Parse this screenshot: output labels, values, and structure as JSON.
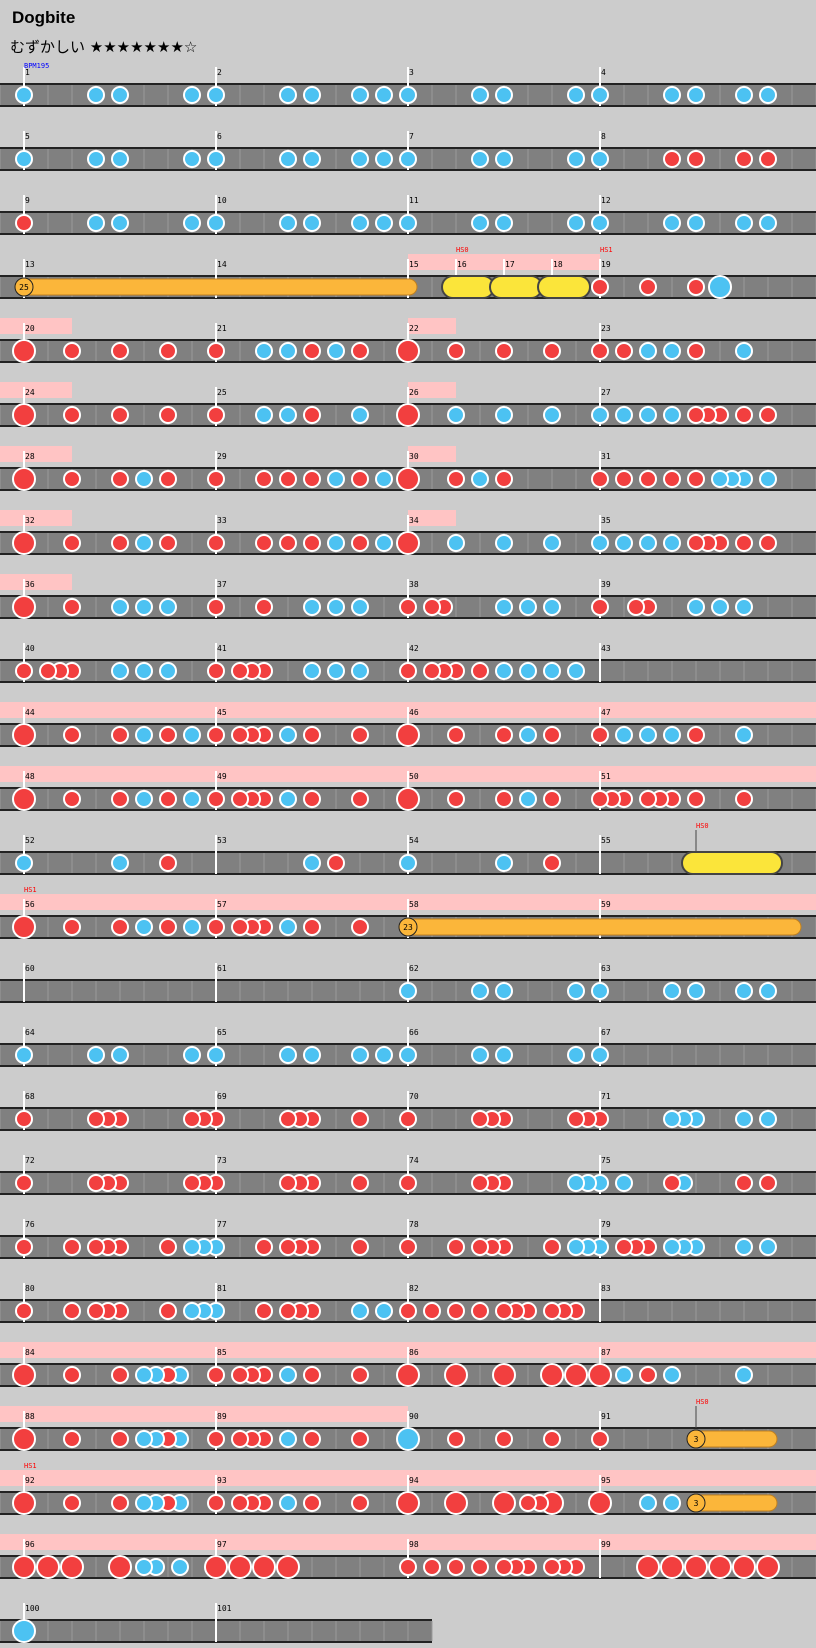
{
  "title": "Dogbite",
  "difficulty": "むずかしい ★★★★★★★☆",
  "colors": {
    "background": "#cccccc",
    "lane": "#808080",
    "lane_edge": "#222222",
    "barline": "#ffffff",
    "gogo_bg": "#ffc4c4",
    "don": "#f23f3f",
    "ka": "#4cc2f2",
    "drumroll": "#fbb63a",
    "balloon": "#fbe53a",
    "bpm_text": "#0000ff",
    "hs_text": "#ff0000"
  },
  "chart": {
    "rows": [
      {
        "measures": [
          1,
          2,
          3,
          4
        ],
        "bpm": "BPM195"
      },
      {
        "measures": [
          5,
          6,
          7,
          8
        ]
      },
      {
        "measures": [
          9,
          10,
          11,
          12
        ]
      },
      {
        "measures": [
          13,
          14,
          15,
          16,
          17,
          18,
          19
        ],
        "hs": [
          {
            "text": "HS0"
          },
          {
            "text": "HS1"
          }
        ]
      },
      {
        "measures": [
          20,
          21,
          22,
          23
        ]
      },
      {
        "measures": [
          24,
          25,
          26,
          27
        ]
      },
      {
        "measures": [
          28,
          29,
          30,
          31
        ]
      },
      {
        "measures": [
          32,
          33,
          34,
          35
        ]
      },
      {
        "measures": [
          36,
          37,
          38,
          39
        ]
      },
      {
        "measures": [
          40,
          41,
          42,
          43
        ]
      },
      {
        "measures": [
          44,
          45,
          46,
          47
        ]
      },
      {
        "measures": [
          48,
          49,
          50,
          51
        ]
      },
      {
        "measures": [
          52,
          53,
          54,
          55
        ],
        "hs": [
          {
            "text": "HS0"
          }
        ]
      },
      {
        "measures": [
          56,
          57,
          58,
          59
        ],
        "hs": [
          {
            "text": "HS1"
          }
        ]
      },
      {
        "measures": [
          60,
          61,
          62,
          63
        ]
      },
      {
        "measures": [
          64,
          65,
          66,
          67
        ]
      },
      {
        "measures": [
          68,
          69,
          70,
          71
        ]
      },
      {
        "measures": [
          72,
          73,
          74,
          75
        ]
      },
      {
        "measures": [
          76,
          77,
          78,
          79
        ]
      },
      {
        "measures": [
          80,
          81,
          82,
          83
        ]
      },
      {
        "measures": [
          84,
          85,
          86,
          87
        ]
      },
      {
        "measures": [
          88,
          89,
          90,
          91
        ],
        "hs": [
          {
            "text": "HS0"
          }
        ]
      },
      {
        "measures": [
          92,
          93,
          94,
          95
        ],
        "hs": [
          {
            "text": "HS1"
          }
        ]
      },
      {
        "measures": [
          96,
          97,
          98,
          99
        ]
      },
      {
        "measures": [
          100,
          101
        ]
      }
    ],
    "roll_counts": [
      "25",
      "23",
      "3",
      "3"
    ]
  }
}
